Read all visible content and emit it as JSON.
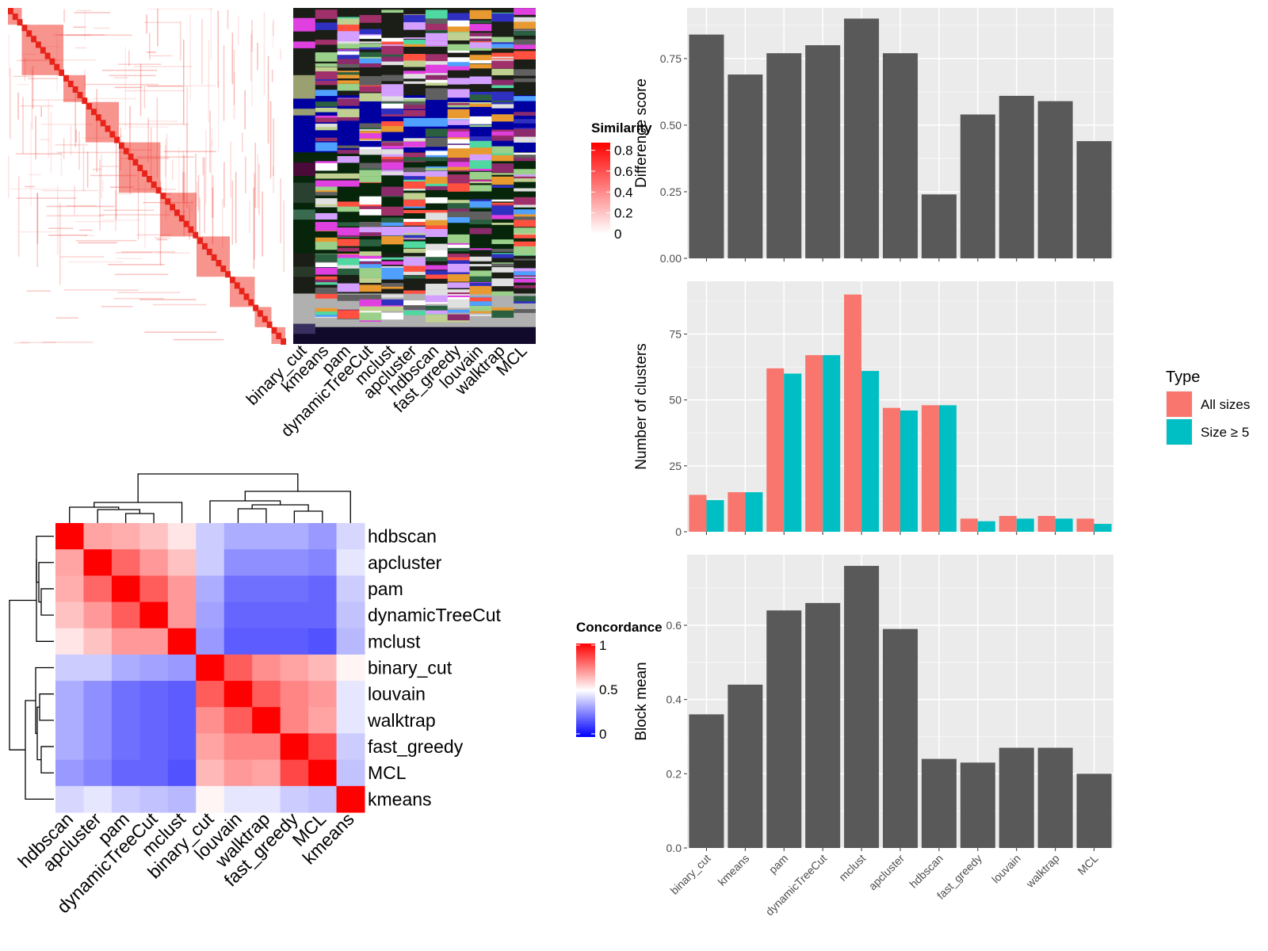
{
  "chart_data": [
    {
      "type": "heatmap",
      "legend": {
        "title": "Similarity",
        "ticks": [
          0,
          0.2,
          0.4,
          0.6,
          0.8
        ]
      },
      "annotation_columns": [
        "binary_cut",
        "kmeans",
        "pam",
        "dynamicTreeCut",
        "mclust",
        "apcluster",
        "hdbscan",
        "fast_greedy",
        "louvain",
        "walktrap",
        "MCL"
      ]
    },
    {
      "type": "heatmap",
      "legend": {
        "title": "Concordance",
        "ticks": [
          0,
          0.5,
          1
        ]
      },
      "rows": [
        "hdbscan",
        "apcluster",
        "pam",
        "dynamicTreeCut",
        "mclust",
        "binary_cut",
        "louvain",
        "walktrap",
        "fast_greedy",
        "MCL",
        "kmeans"
      ],
      "columns": [
        "hdbscan",
        "apcluster",
        "pam",
        "dynamicTreeCut",
        "mclust",
        "binary_cut",
        "louvain",
        "walktrap",
        "fast_greedy",
        "MCL",
        "kmeans"
      ],
      "values": [
        [
          1.0,
          0.68,
          0.66,
          0.62,
          0.55,
          0.4,
          0.34,
          0.34,
          0.34,
          0.3,
          0.42
        ],
        [
          0.68,
          1.0,
          0.8,
          0.7,
          0.62,
          0.4,
          0.28,
          0.28,
          0.28,
          0.26,
          0.45
        ],
        [
          0.66,
          0.8,
          1.0,
          0.82,
          0.7,
          0.34,
          0.22,
          0.22,
          0.22,
          0.2,
          0.4
        ],
        [
          0.62,
          0.7,
          0.82,
          1.0,
          0.7,
          0.32,
          0.2,
          0.2,
          0.2,
          0.2,
          0.38
        ],
        [
          0.55,
          0.62,
          0.7,
          0.7,
          1.0,
          0.3,
          0.18,
          0.18,
          0.18,
          0.16,
          0.36
        ],
        [
          0.4,
          0.4,
          0.34,
          0.32,
          0.3,
          1.0,
          0.82,
          0.72,
          0.68,
          0.64,
          0.52
        ],
        [
          0.34,
          0.28,
          0.22,
          0.2,
          0.18,
          0.82,
          1.0,
          0.82,
          0.74,
          0.7,
          0.45
        ],
        [
          0.34,
          0.28,
          0.22,
          0.2,
          0.18,
          0.72,
          0.82,
          1.0,
          0.74,
          0.68,
          0.45
        ],
        [
          0.34,
          0.28,
          0.22,
          0.2,
          0.18,
          0.68,
          0.74,
          0.74,
          1.0,
          0.86,
          0.4
        ],
        [
          0.3,
          0.26,
          0.2,
          0.2,
          0.16,
          0.64,
          0.7,
          0.68,
          0.86,
          1.0,
          0.38
        ],
        [
          0.42,
          0.45,
          0.4,
          0.38,
          0.36,
          0.52,
          0.45,
          0.45,
          0.4,
          0.38,
          1.0
        ]
      ]
    },
    {
      "type": "bar",
      "categories": [
        "binary_cut",
        "kmeans",
        "pam",
        "dynamicTreeCut",
        "mclust",
        "apcluster",
        "hdbscan",
        "fast_greedy",
        "louvain",
        "walktrap",
        "MCL"
      ],
      "values": [
        0.84,
        0.69,
        0.77,
        0.8,
        0.9,
        0.77,
        0.24,
        0.54,
        0.61,
        0.59,
        0.44
      ],
      "ylabel": "Difference score",
      "ylim": [
        0,
        0.94
      ],
      "yticks": [
        "0.00",
        "0.25",
        "0.50",
        "0.75"
      ]
    },
    {
      "type": "bar",
      "categories": [
        "binary_cut",
        "kmeans",
        "pam",
        "dynamicTreeCut",
        "mclust",
        "apcluster",
        "hdbscan",
        "fast_greedy",
        "louvain",
        "walktrap",
        "MCL"
      ],
      "series": [
        {
          "name": "All sizes",
          "color": "#F8766D",
          "values": [
            14,
            15,
            62,
            67,
            90,
            47,
            48,
            5,
            6,
            6,
            5
          ]
        },
        {
          "name": "Size ≥ 5",
          "color": "#00BFC4",
          "values": [
            12,
            15,
            60,
            67,
            61,
            46,
            48,
            4,
            5,
            5,
            3
          ]
        }
      ],
      "ylabel": "Number of clusters",
      "ylim": [
        0,
        95
      ],
      "yticks": [
        "0",
        "25",
        "50",
        "75"
      ],
      "legend": {
        "title": "Type",
        "position": "right"
      }
    },
    {
      "type": "bar",
      "categories": [
        "binary_cut",
        "kmeans",
        "pam",
        "dynamicTreeCut",
        "mclust",
        "apcluster",
        "hdbscan",
        "fast_greedy",
        "louvain",
        "walktrap",
        "MCL"
      ],
      "values": [
        0.36,
        0.44,
        0.64,
        0.66,
        0.76,
        0.59,
        0.24,
        0.23,
        0.27,
        0.27,
        0.2
      ],
      "ylabel": "Block mean",
      "ylim": [
        0,
        0.79
      ],
      "yticks": [
        "0.0",
        "0.2",
        "0.4",
        "0.6"
      ]
    }
  ]
}
